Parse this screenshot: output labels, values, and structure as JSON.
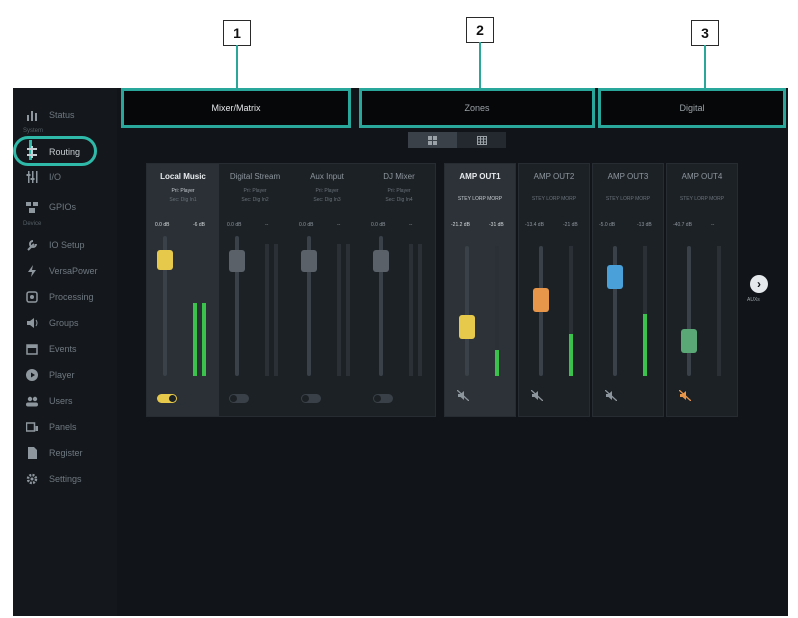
{
  "callouts": [
    "1",
    "2",
    "3"
  ],
  "sidebar": {
    "items": [
      {
        "label": "Status",
        "icon": "bar-chart-icon"
      },
      {
        "label": "Routing",
        "icon": "routing-icon"
      },
      {
        "label": "I/O",
        "icon": "sliders-icon"
      },
      {
        "label": "GPIOs",
        "icon": "gpio-icon"
      },
      {
        "label": "IO Setup",
        "icon": "wrench-icon"
      },
      {
        "label": "VersaPower",
        "icon": "lightning-icon"
      },
      {
        "label": "Processing",
        "icon": "processing-icon"
      },
      {
        "label": "Groups",
        "icon": "speaker-icon"
      },
      {
        "label": "Events",
        "icon": "calendar-icon"
      },
      {
        "label": "Player",
        "icon": "play-icon"
      },
      {
        "label": "Users",
        "icon": "users-icon"
      },
      {
        "label": "Panels",
        "icon": "panels-icon"
      },
      {
        "label": "Register",
        "icon": "document-icon"
      },
      {
        "label": "Settings",
        "icon": "gear-icon"
      }
    ],
    "section_device": "Device",
    "section_system": "System"
  },
  "tabs": [
    {
      "label": "Mixer/Matrix"
    },
    {
      "label": "Zones"
    },
    {
      "label": "Digital"
    }
  ],
  "view_toggle": {
    "icon_left": "grid-icon",
    "icon_right": "table-icon"
  },
  "inputs": [
    {
      "name": "Local Music",
      "pri": "Pri: Player",
      "sec": "Sec: Dig In1",
      "db_left": "0.0 dB",
      "db_right": "-6 dB",
      "on": true,
      "fader": 0.88,
      "meter": 0.55
    },
    {
      "name": "Digital Stream",
      "pri": "Pri: Player",
      "sec": "Sec: Dig In2",
      "db_left": "0.0 dB",
      "db_right": "--",
      "on": false,
      "fader": 0.88,
      "meter": 0
    },
    {
      "name": "Aux Input",
      "pri": "Pri: Player",
      "sec": "Sec: Dig In3",
      "db_left": "0.0 dB",
      "db_right": "--",
      "on": false,
      "fader": 0.88,
      "meter": 0
    },
    {
      "name": "DJ Mixer",
      "pri": "Pri: Player",
      "sec": "Sec: Dig In4",
      "db_left": "0.0 dB",
      "db_right": "--",
      "on": false,
      "fader": 0.88,
      "meter": 0
    }
  ],
  "outputs": [
    {
      "name": "AMP OUT1",
      "modes": "STEY LORP MORP",
      "db_left": "-21.2 dB",
      "db_right": "-31 dB",
      "color": "#e6c84a",
      "fader": 0.35,
      "meter": 0.2
    },
    {
      "name": "AMP OUT2",
      "modes": "STEY LORP MORP",
      "db_left": "-13.4 dB",
      "db_right": "-21 dB",
      "color": "#e8964a",
      "fader": 0.6,
      "meter": 0.32
    },
    {
      "name": "AMP OUT3",
      "modes": "STEY LORP MORP",
      "db_left": "-5.0 dB",
      "db_right": "-13 dB",
      "color": "#4aa0d8",
      "fader": 0.82,
      "meter": 0.48
    },
    {
      "name": "AMP OUT4",
      "modes": "STEY LORP MORP",
      "db_left": "-40.7 dB",
      "db_right": "--",
      "color": "#5aa876",
      "fader": 0.22,
      "meter": 0
    }
  ],
  "next": {
    "label": "AUXs"
  }
}
